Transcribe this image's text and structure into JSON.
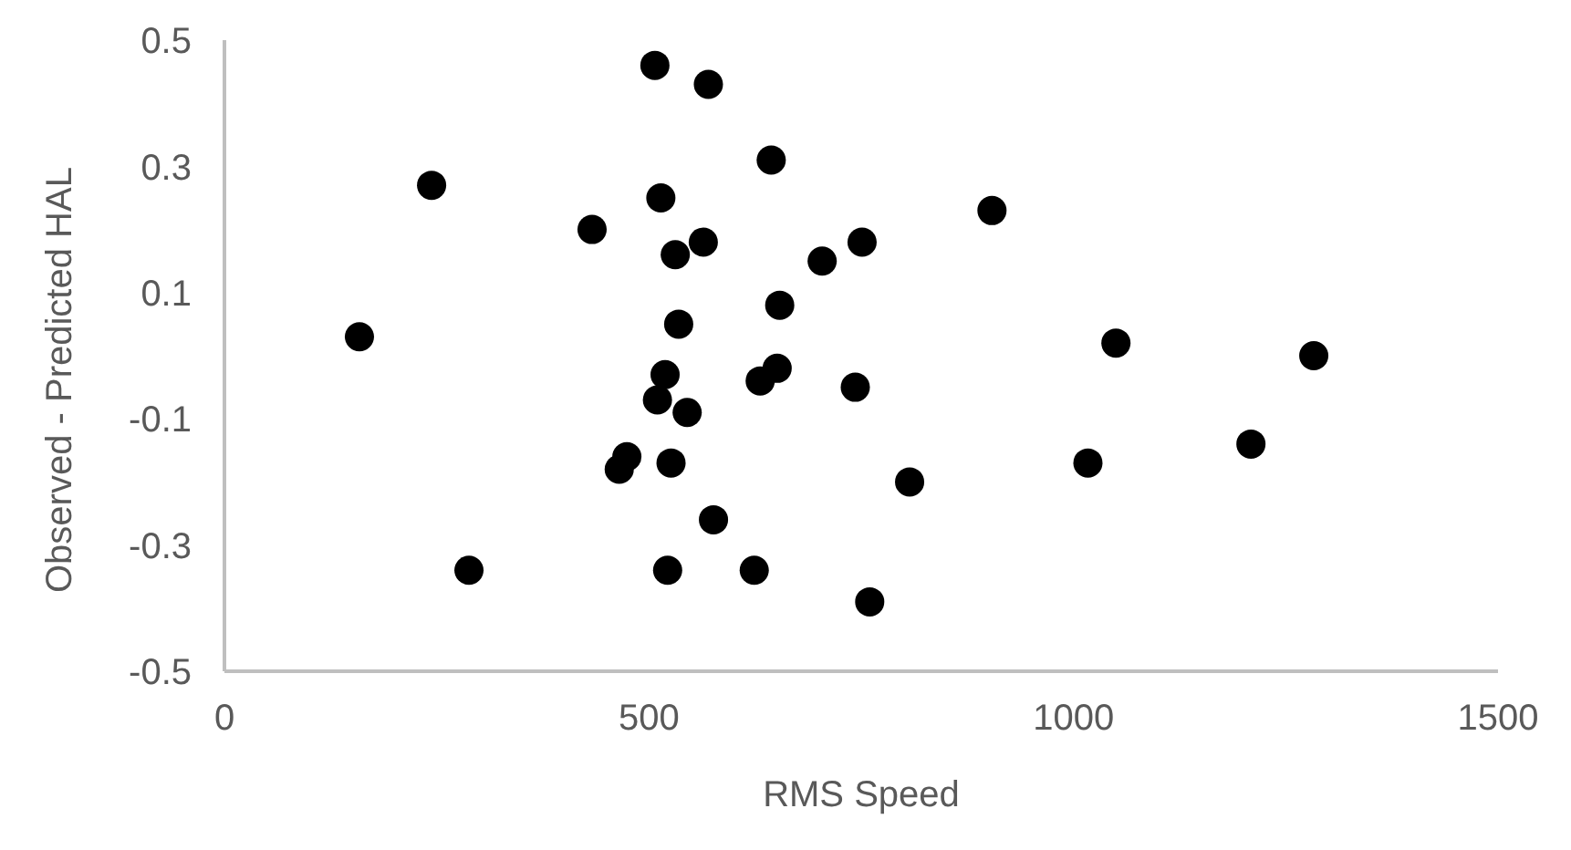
{
  "chart_data": {
    "type": "scatter",
    "xlabel": "RMS Speed",
    "ylabel": "Observed - Predicted HAL",
    "xlim": [
      0,
      1500
    ],
    "xticks": [
      0,
      500,
      1000,
      1500
    ],
    "ylim": [
      -0.5,
      0.5
    ],
    "yticks": [
      -0.5,
      -0.3,
      -0.1,
      0.1,
      0.3,
      0.5
    ],
    "grid": false,
    "legend": false,
    "marker": "circle",
    "series": [
      {
        "color": "#000000",
        "x": [
          159,
          244,
          288,
          433,
          465,
          474,
          507,
          510,
          514,
          519,
          522,
          526,
          531,
          535,
          545,
          564,
          570,
          576,
          624,
          631,
          644,
          651,
          654,
          704,
          743,
          751,
          760,
          807,
          904,
          1017,
          1050,
          1209,
          1283
        ],
        "values": [
          0.03,
          0.27,
          -0.34,
          0.2,
          -0.18,
          -0.16,
          0.46,
          -0.07,
          0.25,
          -0.03,
          -0.34,
          -0.17,
          0.16,
          0.05,
          -0.09,
          0.18,
          0.43,
          -0.26,
          -0.34,
          -0.04,
          0.31,
          -0.02,
          0.08,
          0.15,
          -0.05,
          0.18,
          -0.39,
          -0.2,
          0.23,
          -0.17,
          0.02,
          -0.14,
          0
        ]
      }
    ]
  }
}
